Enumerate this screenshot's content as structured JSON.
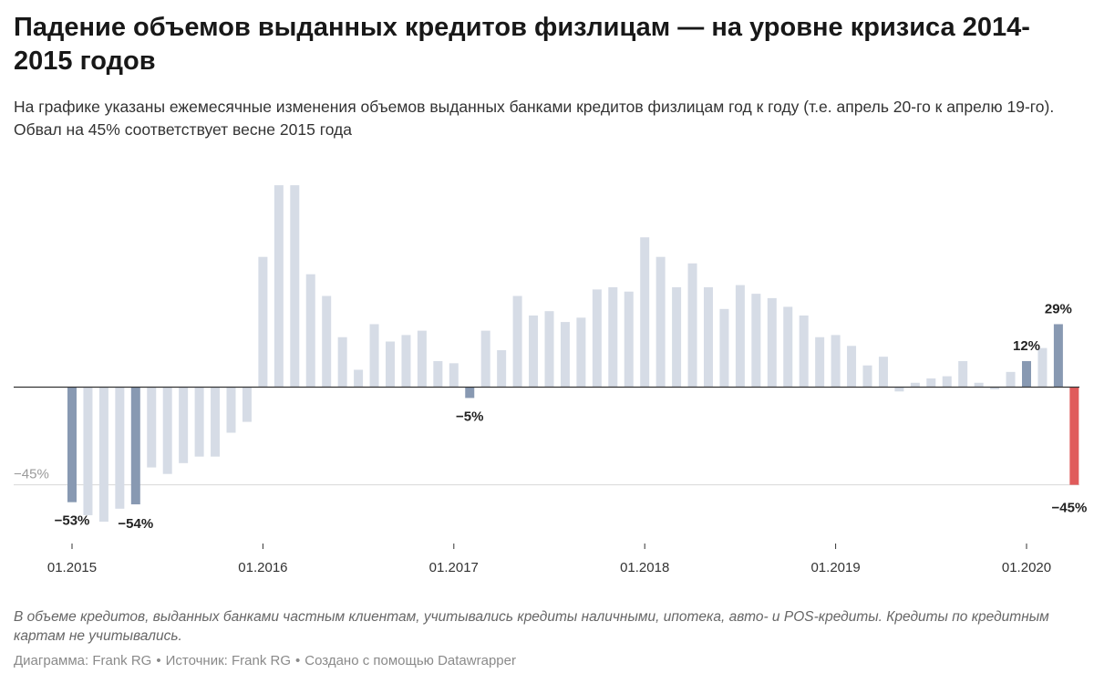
{
  "header": {
    "title": "Падение объемов выданных кредитов физлицам — на уровне кризиса 2014-2015 годов",
    "subtitle": "На графике указаны ежемесячные изменения объемов выданных банками кредитов физлицам год к году (т.е. апрель 20-го к апрелю 19-го). Обвал на 45% соответствует весне 2015 года"
  },
  "footer": {
    "note": "В объеме кредитов, выданных банками частным клиентам, учитывались кредиты наличными, ипотека, авто- и POS-кредиты. Кредиты по кредитным картам не учитывались.",
    "credit_chart": "Диаграмма: Frank RG",
    "credit_source": "Источник: Frank RG",
    "credit_tool": "Создано с помощью Datawrapper",
    "separator": "•"
  },
  "colors": {
    "bar_default": "#d6dce6",
    "bar_highlight": "#8899b2",
    "bar_latest": "#e05b5b",
    "baseline": "#333333",
    "reference_line": "#d8d8d8",
    "reference_label": "#9a9a9a"
  },
  "chart_data": {
    "type": "bar",
    "x_start": "01.2015",
    "x_ticks": [
      "01.2015",
      "01.2016",
      "01.2017",
      "01.2018",
      "01.2019",
      "01.2020"
    ],
    "ylim": [
      -73,
      92
    ],
    "reference_line": {
      "value": -45,
      "label": "−45%"
    },
    "categories": [
      "01.2015",
      "02.2015",
      "03.2015",
      "04.2015",
      "05.2015",
      "06.2015",
      "07.2015",
      "08.2015",
      "09.2015",
      "10.2015",
      "11.2015",
      "12.2015",
      "01.2016",
      "02.2016",
      "03.2016",
      "04.2016",
      "05.2016",
      "06.2016",
      "07.2016",
      "08.2016",
      "09.2016",
      "10.2016",
      "11.2016",
      "12.2016",
      "01.2017",
      "02.2017",
      "03.2017",
      "04.2017",
      "05.2017",
      "06.2017",
      "07.2017",
      "08.2017",
      "09.2017",
      "10.2017",
      "11.2017",
      "12.2017",
      "01.2018",
      "02.2018",
      "03.2018",
      "04.2018",
      "05.2018",
      "06.2018",
      "07.2018",
      "08.2018",
      "09.2018",
      "10.2018",
      "11.2018",
      "12.2018",
      "01.2019",
      "02.2019",
      "03.2019",
      "04.2019",
      "05.2019",
      "06.2019",
      "07.2019",
      "08.2019",
      "09.2019",
      "10.2019",
      "11.2019",
      "12.2019",
      "01.2020",
      "02.2020",
      "03.2020",
      "04.2020"
    ],
    "values": [
      -53,
      -59,
      -62,
      -56,
      -54,
      -37,
      -40,
      -35,
      -32,
      -32,
      -21,
      -16,
      60,
      93,
      93,
      52,
      42,
      23,
      8,
      29,
      21,
      24,
      26,
      12,
      11,
      -5,
      26,
      17,
      42,
      33,
      35,
      30,
      32,
      45,
      46,
      44,
      69,
      60,
      46,
      57,
      46,
      36,
      47,
      43,
      41,
      37,
      33,
      23,
      24,
      19,
      10,
      14,
      -2,
      2,
      4,
      5,
      12,
      2,
      -1,
      7,
      12,
      18,
      29,
      -45
    ],
    "highlight": {
      "0": "#8899b2",
      "4": "#8899b2",
      "25": "#8899b2",
      "60": "#8899b2",
      "62": "#8899b2",
      "63": "#e05b5b"
    },
    "data_labels": [
      {
        "index": 0,
        "text": "−53%"
      },
      {
        "index": 4,
        "text": "−54%"
      },
      {
        "index": 25,
        "text": "−5%"
      },
      {
        "index": 60,
        "text": "12%"
      },
      {
        "index": 62,
        "text": "29%"
      },
      {
        "index": 63,
        "text": "−45%"
      }
    ]
  }
}
